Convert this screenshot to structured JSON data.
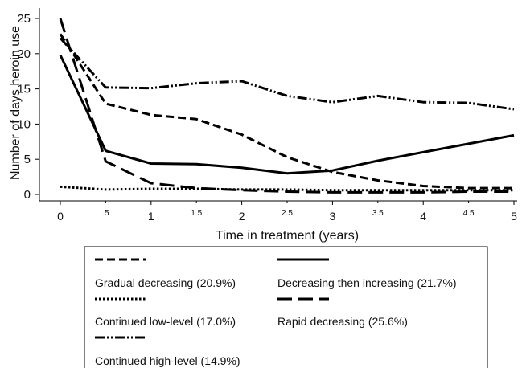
{
  "chart_data": {
    "type": "line",
    "title": "",
    "xlabel": "Time in treatment (years)",
    "ylabel": "Number of days heroin use",
    "xlim": [
      0,
      5
    ],
    "ylim": [
      0,
      25
    ],
    "x_ticks": [
      {
        "value": 0,
        "label": "0",
        "major": true
      },
      {
        "value": 0.5,
        "label": ".5",
        "major": false
      },
      {
        "value": 1,
        "label": "1",
        "major": true
      },
      {
        "value": 1.5,
        "label": "1.5",
        "major": false
      },
      {
        "value": 2,
        "label": "2",
        "major": true
      },
      {
        "value": 2.5,
        "label": "2.5",
        "major": false
      },
      {
        "value": 3,
        "label": "3",
        "major": true
      },
      {
        "value": 3.5,
        "label": "3.5",
        "major": false
      },
      {
        "value": 4,
        "label": "4",
        "major": true
      },
      {
        "value": 4.5,
        "label": "4.5",
        "major": false
      },
      {
        "value": 5,
        "label": "5",
        "major": true
      }
    ],
    "y_ticks": [
      {
        "value": 0,
        "label": "0"
      },
      {
        "value": 5,
        "label": "5"
      },
      {
        "value": 10,
        "label": "10"
      },
      {
        "value": 15,
        "label": "15"
      },
      {
        "value": 20,
        "label": "20"
      },
      {
        "value": 25,
        "label": "25"
      }
    ],
    "grid": false,
    "legend_position": "bottom",
    "series": [
      {
        "name": "Gradual decreasing (20.9%)",
        "style": "short-dash",
        "color": "#000000",
        "x": [
          0,
          0.5,
          1,
          1.5,
          2,
          2.5,
          3,
          3.5,
          4,
          4.5,
          5
        ],
        "y": [
          22.8,
          12.9,
          11.3,
          10.7,
          8.5,
          5.3,
          3.2,
          2.0,
          1.2,
          0.9,
          0.9
        ]
      },
      {
        "name": "Decreasing then increasing (21.7%)",
        "style": "solid",
        "color": "#000000",
        "x": [
          0,
          0.5,
          1,
          1.5,
          2,
          2.5,
          3,
          3.5,
          4,
          4.5,
          5
        ],
        "y": [
          19.8,
          6.2,
          4.4,
          4.3,
          3.8,
          3.0,
          3.4,
          4.8,
          6.0,
          7.2,
          8.4
        ]
      },
      {
        "name": "Continued low-level (17.0%)",
        "style": "dotted",
        "color": "#000000",
        "x": [
          0,
          0.5,
          1,
          1.5,
          2,
          2.5,
          3,
          3.5,
          4,
          4.5,
          5
        ],
        "y": [
          1.1,
          0.7,
          0.8,
          0.8,
          0.7,
          0.7,
          0.6,
          0.6,
          0.6,
          0.6,
          0.6
        ]
      },
      {
        "name": "Rapid decreasing (25.6%)",
        "style": "long-dash",
        "color": "#000000",
        "x": [
          0,
          0.5,
          1,
          1.5,
          2,
          2.5,
          3,
          3.5,
          4,
          4.5,
          5
        ],
        "y": [
          25.0,
          4.7,
          1.6,
          0.9,
          0.6,
          0.4,
          0.3,
          0.3,
          0.3,
          0.4,
          0.4
        ]
      },
      {
        "name": "Continued high-level (14.9%)",
        "style": "dash-dot-dot",
        "color": "#000000",
        "x": [
          0,
          0.5,
          1,
          1.5,
          2,
          2.5,
          3,
          3.5,
          4,
          4.5,
          5
        ],
        "y": [
          22.2,
          15.2,
          15.1,
          15.8,
          16.1,
          14.0,
          13.1,
          14.0,
          13.1,
          13.0,
          12.1
        ]
      }
    ]
  }
}
